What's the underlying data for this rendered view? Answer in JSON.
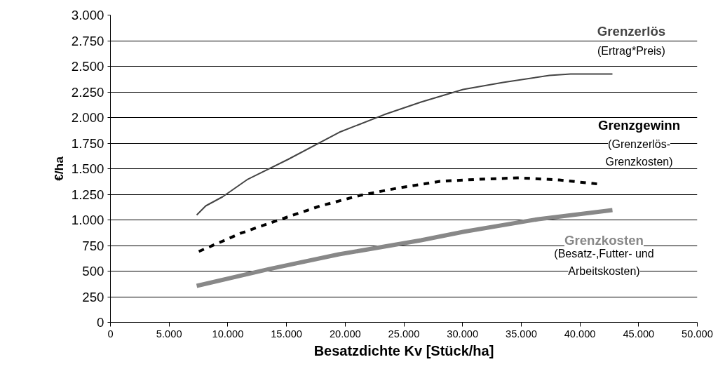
{
  "chart_data": {
    "type": "line",
    "xlabel": "Besatzdichte Kv [Stück/ha]",
    "ylabel": "€/ha",
    "xlim": [
      0,
      50000
    ],
    "ylim": [
      0,
      3000
    ],
    "xticks": [
      0,
      {
        "value": 5000,
        "label": "5.000"
      },
      {
        "value": 10000,
        "label": "10.000"
      },
      {
        "value": 15000,
        "label": "15.000"
      },
      {
        "value": 20000,
        "label": "20.000"
      },
      {
        "value": 25000,
        "label": "25.000"
      },
      {
        "value": 30000,
        "label": "30.000"
      },
      {
        "value": 35000,
        "label": "35.000"
      },
      {
        "value": 40000,
        "label": "40.000"
      },
      {
        "value": 45000,
        "label": "45.000"
      },
      {
        "value": 50000,
        "label": "50.000"
      }
    ],
    "yticks": [
      0,
      250,
      500,
      750,
      {
        "value": 1000,
        "label": "1.000"
      },
      {
        "value": 1250,
        "label": "1.250"
      },
      {
        "value": 1500,
        "label": "1.500"
      },
      {
        "value": 1750,
        "label": "1.750"
      },
      {
        "value": 2000,
        "label": "2.000"
      },
      {
        "value": 2250,
        "label": "2.250"
      },
      {
        "value": 2500,
        "label": "2.500"
      },
      {
        "value": 2750,
        "label": "2.750"
      },
      {
        "value": 3000,
        "label": "3.000"
      }
    ],
    "grid": "y",
    "legend": false,
    "marker": "none",
    "series": [
      {
        "name": "Grenzerlös",
        "color": "#444444",
        "line_style": "solid",
        "x": [
          7350,
          8120,
          9560,
          11700,
          15100,
          19500,
          23300,
          26460,
          30050,
          33450,
          37400,
          39200,
          42770
        ],
        "values": [
          1048,
          1137,
          1226,
          1397,
          1589,
          1856,
          2027,
          2151,
          2274,
          2342,
          2411,
          2425,
          2425
        ]
      },
      {
        "name": "Grenzgewinn",
        "color": "#000000",
        "line_style": "dashed",
        "x": [
          7530,
          11110,
          14520,
          17900,
          21270,
          24670,
          28080,
          31420,
          34830,
          38230,
          41700
        ],
        "values": [
          692,
          870,
          1007,
          1137,
          1240,
          1315,
          1377,
          1397,
          1411,
          1390,
          1349
        ]
      },
      {
        "name": "Grenzkosten",
        "color": "#888888",
        "line_style": "solid",
        "x": [
          7350,
          13500,
          19470,
          26460,
          30050,
          36440,
          42770
        ],
        "values": [
          356,
          520,
          664,
          801,
          884,
          1007,
          1096
        ]
      }
    ],
    "annotations": [
      "(Ertrag*Preis)",
      "(Grenzerlös-\nGrenzkosten)",
      "(Besatz-,Futter- und\nArbeitskosten)"
    ]
  }
}
